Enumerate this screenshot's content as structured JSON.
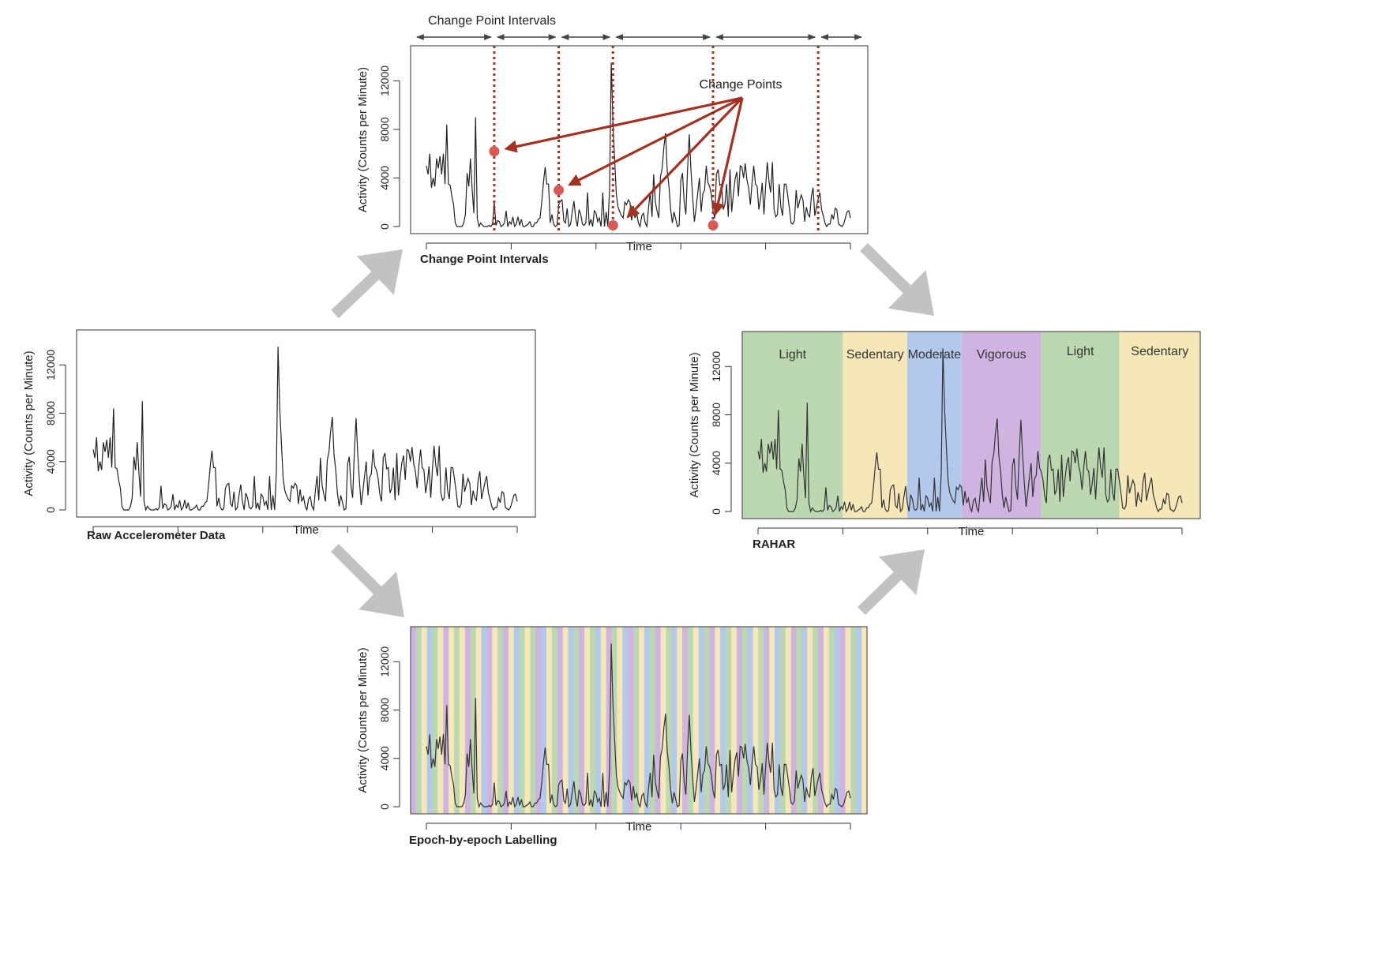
{
  "figure": {
    "panels": {
      "raw": {
        "caption": "Raw Accelerometer Data",
        "ylabel": "Activity (Counts per Minute)",
        "xlabel": "Time"
      },
      "cpi": {
        "caption": "Change Point Intervals",
        "ylabel": "Activity (Counts per Minute)",
        "xlabel": "Time",
        "intervals_label": "Change Point Intervals",
        "changepoints_label": "Change Points"
      },
      "rahar": {
        "caption": "RAHAR",
        "ylabel": "Activity (Counts per Minute)",
        "xlabel": "Time"
      },
      "epoch": {
        "caption": "Epoch-by-epoch Labelling",
        "ylabel": "Activity (Counts per Minute)",
        "xlabel": "Time"
      }
    },
    "colors": {
      "light": "#bcd8b0",
      "sedentary": "#f6e7b8",
      "moderate": "#b3c9ec",
      "vigorous": "#cfb3e0",
      "changepoint": "#a33020",
      "marker": "#d85a55",
      "flow_arrow": "#c2c2c2"
    }
  },
  "chart_data": {
    "type": "line",
    "xlabel": "Time",
    "ylabel": "Activity (Counts per Minute)",
    "ylim": [
      0,
      14500
    ],
    "yticks": [
      "0",
      "4000",
      "8000",
      "12000"
    ],
    "ytick_values": [
      0,
      4000,
      8000,
      12000
    ],
    "x_range": [
      0,
      250
    ],
    "activity": [
      5000,
      4300,
      6000,
      3200,
      4000,
      3300,
      5600,
      4800,
      5800,
      4300,
      6000,
      3500,
      8400,
      3500,
      3400,
      2500,
      1800,
      300,
      0,
      0,
      0,
      0,
      300,
      1000,
      4400,
      3300,
      5600,
      3000,
      1100,
      9000,
      700,
      0,
      300,
      100,
      0,
      0,
      0,
      100,
      0,
      200,
      2000,
      100,
      500,
      400,
      0,
      100,
      300,
      1300,
      0,
      400,
      200,
      800,
      0,
      200,
      800,
      100,
      600,
      0,
      0,
      100,
      200,
      400,
      0,
      0,
      300,
      300,
      600,
      700,
      2000,
      3600,
      4900,
      3500,
      3500,
      300,
      1000,
      200,
      0,
      100,
      1800,
      2100,
      2200,
      500,
      300,
      1500,
      0,
      200,
      1200,
      2100,
      700,
      0,
      1400,
      1000,
      200,
      100,
      300,
      2800,
      100,
      600,
      0,
      1300,
      1100,
      400,
      700,
      0,
      2800,
      0,
      1200,
      0,
      3100,
      13500,
      8400,
      5500,
      2600,
      1600,
      1200,
      900,
      700,
      2000,
      1800,
      2200,
      2000,
      500,
      1700,
      700,
      1100,
      300,
      0,
      900,
      1100,
      300,
      0,
      1600,
      2800,
      800,
      4300,
      2000,
      1300,
      700,
      4100,
      4800,
      6500,
      7700,
      4600,
      3300,
      1400,
      300,
      1200,
      600,
      0,
      100,
      3800,
      4400,
      2000,
      1000,
      4800,
      7600,
      4600,
      2400,
      400,
      1500,
      2800,
      4000,
      1200,
      2700,
      3000,
      5000,
      3600,
      3300,
      2600,
      1300,
      700,
      4300,
      4700,
      3400,
      3500,
      1400,
      1800,
      3500,
      800,
      4700,
      1200,
      2700,
      3900,
      4500,
      2500,
      5000,
      4900,
      4000,
      5200,
      3800,
      3200,
      1800,
      3600,
      5000,
      3500,
      3300,
      1400,
      2300,
      3600,
      1000,
      3300,
      5300,
      3700,
      2800,
      5300,
      1400,
      800,
      1000,
      3500,
      1600,
      900,
      3500,
      3500,
      2600,
      1500,
      300,
      200,
      500,
      3000,
      1500,
      2100,
      2600,
      2200,
      400,
      1600,
      1000,
      800,
      2500,
      3200,
      900,
      1600,
      2300,
      2800,
      1400,
      900,
      300,
      0,
      200,
      200,
      1000,
      600,
      1500,
      1400,
      200,
      100,
      0,
      200,
      700,
      1200,
      1300,
      700
    ],
    "change_points": [
      40,
      78,
      110,
      169,
      231
    ],
    "change_point_values": [
      6200,
      3000,
      100,
      100
    ],
    "segments": [
      {
        "from": 0,
        "to": 50,
        "label": "Light",
        "class": "light"
      },
      {
        "from": 50,
        "to": 88,
        "label": "Sedentary",
        "class": "sedentary"
      },
      {
        "from": 88,
        "to": 120,
        "label": "Moderate",
        "class": "moderate"
      },
      {
        "from": 120,
        "to": 167,
        "label": "Vigorous",
        "class": "vigorous"
      },
      {
        "from": 167,
        "to": 213,
        "label": "Light",
        "class": "light"
      },
      {
        "from": 213,
        "to": 250,
        "label": "Sedentary",
        "class": "sedentary"
      }
    ],
    "epoch_labels": [
      "vigorous",
      "light",
      "sedentary",
      "moderate",
      "light",
      "sedentary",
      "vigorous",
      "sedentary",
      "light",
      "sedentary",
      "vigorous",
      "light",
      "sedentary",
      "moderate",
      "vigorous",
      "sedentary",
      "light",
      "vigorous",
      "sedentary",
      "moderate",
      "light",
      "sedentary",
      "light",
      "vigorous",
      "moderate",
      "sedentary",
      "light",
      "vigorous",
      "sedentary",
      "moderate",
      "light",
      "vigorous",
      "sedentary",
      "light",
      "moderate",
      "sedentary",
      "vigorous",
      "light",
      "sedentary",
      "moderate",
      "vigorous",
      "light",
      "sedentary",
      "moderate",
      "light",
      "vigorous",
      "sedentary",
      "light",
      "moderate",
      "sedentary",
      "vigorous",
      "light",
      "sedentary",
      "moderate",
      "light",
      "vigorous",
      "sedentary",
      "moderate",
      "light",
      "sedentary",
      "vigorous",
      "light",
      "moderate",
      "sedentary",
      "light",
      "vigorous",
      "sedentary",
      "moderate",
      "light",
      "sedentary",
      "vigorous",
      "light",
      "moderate",
      "sedentary",
      "light",
      "vigorous",
      "sedentary",
      "light",
      "moderate",
      "vigorous",
      "sedentary",
      "light",
      "moderate",
      "sedentary"
    ]
  }
}
